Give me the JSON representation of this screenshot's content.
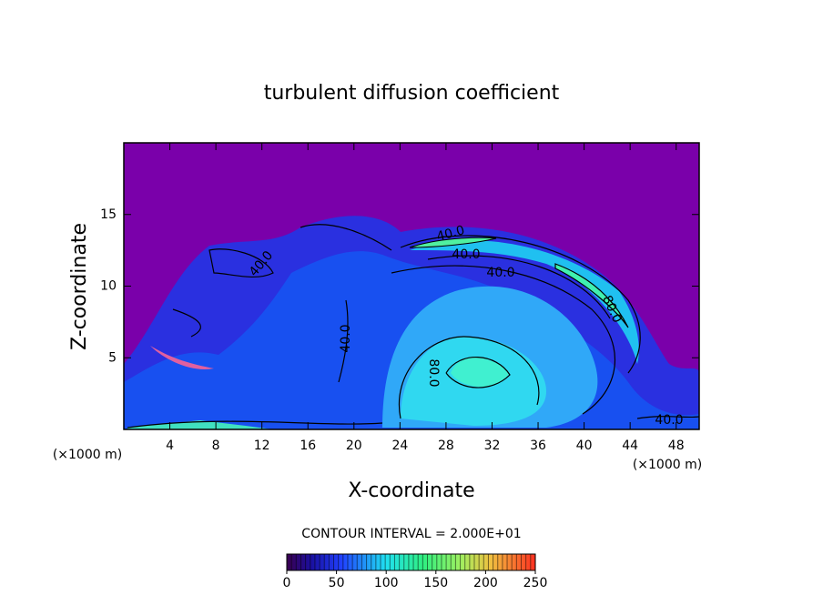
{
  "chart_data": {
    "type": "contour",
    "title": "turbulent diffusion coefficient",
    "x_label": "X-coordinate",
    "y_label": "Z-coordinate",
    "x_unit": "(×1000 m)",
    "y_unit": "(×1000 m)",
    "xlim": [
      0,
      50
    ],
    "xticks": [
      4,
      8,
      12,
      16,
      20,
      24,
      28,
      32,
      36,
      40,
      44,
      48
    ],
    "ylim": [
      0,
      20
    ],
    "yticks": [
      5,
      10,
      15
    ],
    "contour_labels": [
      {
        "value": 40,
        "label": "40.0"
      },
      {
        "value": 40,
        "label": "40.0"
      },
      {
        "value": 40,
        "label": "40.0"
      },
      {
        "value": 80,
        "label": "80.0"
      },
      {
        "value": 40,
        "label": "40.0"
      },
      {
        "value": 40,
        "label": "40.0"
      },
      {
        "value": 80,
        "label": "80.0"
      },
      {
        "value": 40,
        "label": "40.0"
      }
    ],
    "contour_interval_label": "CONTOUR INTERVAL = 2.000E+01",
    "colorbar": {
      "lim": [
        0,
        250
      ],
      "ticks": [
        0,
        50,
        100,
        150,
        200,
        250
      ]
    }
  }
}
